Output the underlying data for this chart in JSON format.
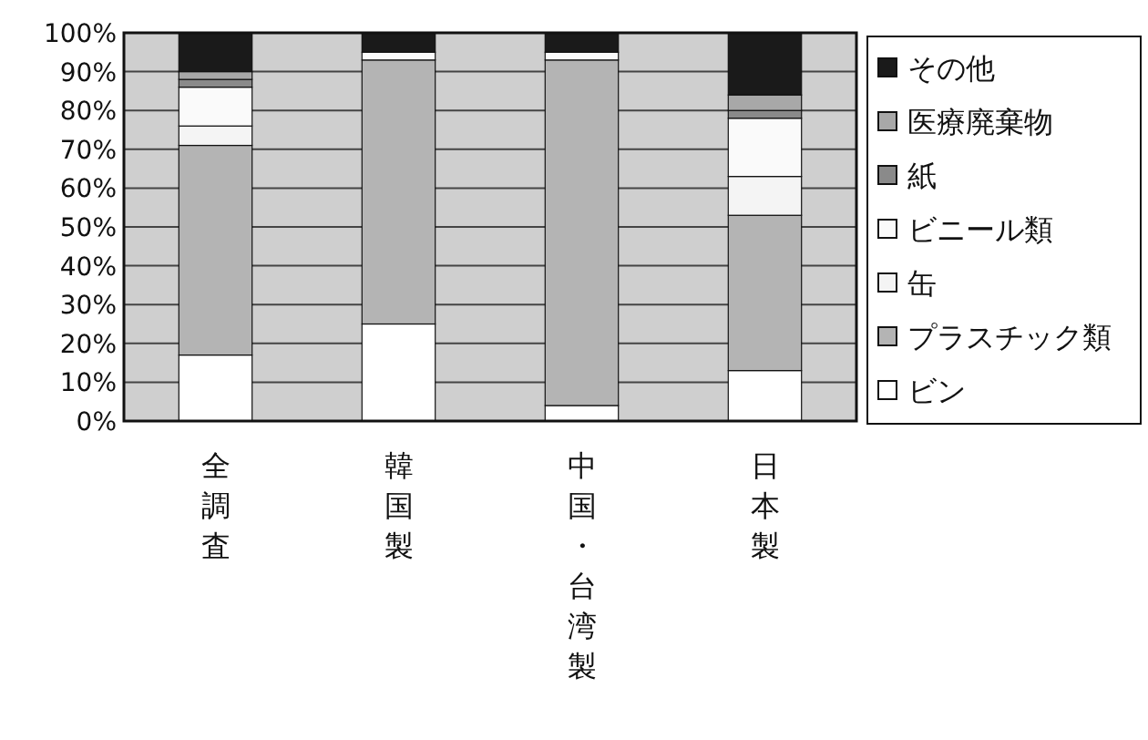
{
  "chart_data": {
    "type": "bar",
    "stacked": true,
    "categories": [
      "全調査",
      "韓国製",
      "中国・台湾製",
      "日本製"
    ],
    "series": [
      {
        "name": "ビン",
        "color": "#ffffff",
        "values": [
          17,
          25,
          4,
          13
        ]
      },
      {
        "name": "プラスチック類",
        "color": "#b4b4b4",
        "values": [
          54,
          68,
          89,
          40
        ]
      },
      {
        "name": "缶",
        "color": "#f4f4f4",
        "values": [
          5,
          0,
          0,
          10
        ]
      },
      {
        "name": "ビニール類",
        "color": "#fafafa",
        "values": [
          10,
          2,
          2,
          15
        ]
      },
      {
        "name": "紙",
        "color": "#8a8a8a",
        "values": [
          2,
          0,
          0,
          2
        ]
      },
      {
        "name": "医療廃棄物",
        "color": "#a8a8a8",
        "values": [
          2,
          0,
          0,
          4
        ]
      },
      {
        "name": "その他",
        "color": "#1a1a1a",
        "values": [
          10,
          5,
          5,
          16
        ]
      }
    ],
    "ylim": [
      0,
      100
    ],
    "yticks": [
      {
        "value": 0,
        "label": "0%"
      },
      {
        "value": 10,
        "label": "10%"
      },
      {
        "value": 20,
        "label": "20%"
      },
      {
        "value": 30,
        "label": "30%"
      },
      {
        "value": 40,
        "label": "40%"
      },
      {
        "value": 50,
        "label": "50%"
      },
      {
        "value": 60,
        "label": "60%"
      },
      {
        "value": 70,
        "label": "70%"
      },
      {
        "value": 80,
        "label": "80%"
      },
      {
        "value": 90,
        "label": "90%"
      },
      {
        "value": 100,
        "label": "100%"
      }
    ],
    "grid": "y",
    "legend": "right"
  }
}
